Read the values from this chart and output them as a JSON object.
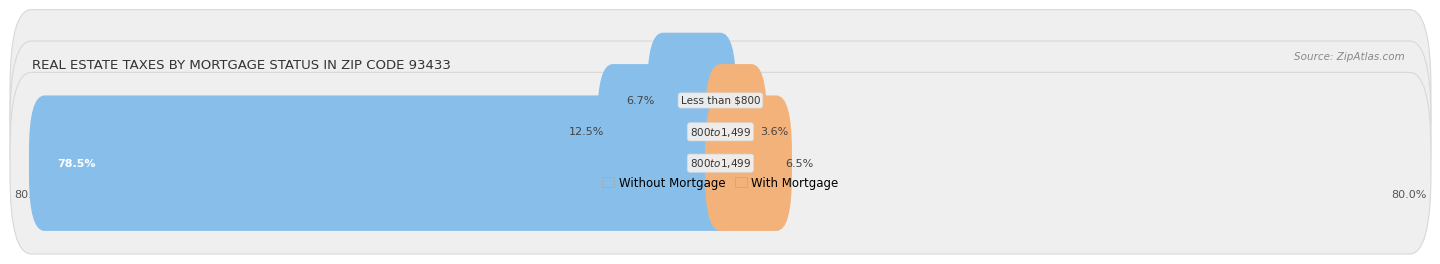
{
  "title": "REAL ESTATE TAXES BY MORTGAGE STATUS IN ZIP CODE 93433",
  "source": "Source: ZipAtlas.com",
  "rows": [
    {
      "label": "Less than $800",
      "without_mortgage": 6.7,
      "with_mortgage": 0.0
    },
    {
      "label": "$800 to $1,499",
      "without_mortgage": 12.5,
      "with_mortgage": 3.6
    },
    {
      "label": "$800 to $1,499",
      "without_mortgage": 78.5,
      "with_mortgage": 6.5
    }
  ],
  "x_min": -80.0,
  "x_max": 80.0,
  "x_left_label": "80.0%",
  "x_right_label": "80.0%",
  "color_without": "#88BFEA",
  "color_with": "#F2B27A",
  "row_bg_color": "#EFEFEF",
  "row_border_color": "#D8D8D8",
  "legend_without": "Without Mortgage",
  "legend_with": "With Mortgage",
  "title_fontsize": 9.5,
  "label_fontsize": 8.0,
  "bar_height": 0.72,
  "fig_bg_color": "#FFFFFF",
  "center_label_bg": "#EFEFEF"
}
